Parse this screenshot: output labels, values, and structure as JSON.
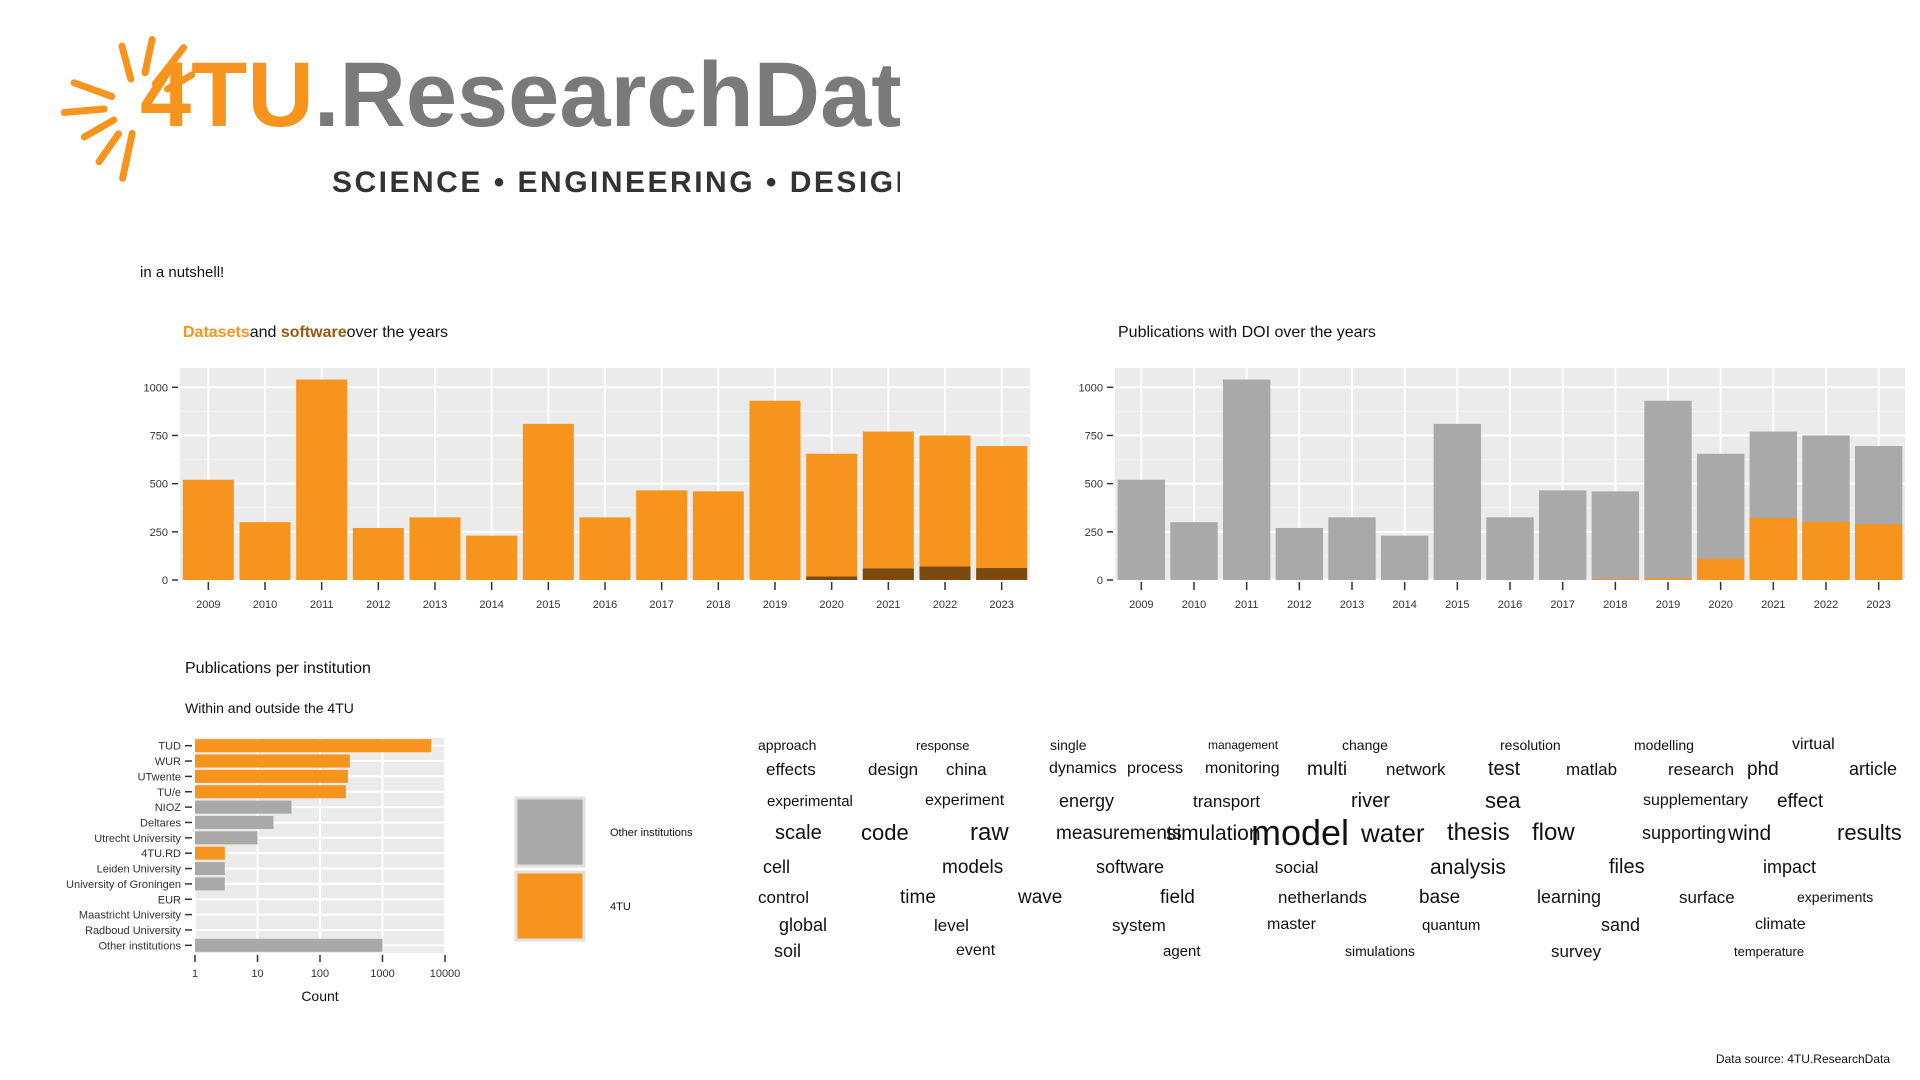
{
  "logo": {
    "brand_prefix": "4TU",
    "brand_dot": ".",
    "brand_name": "ResearchData",
    "tagline": "SCIENCE • ENGINEERING • DESIGN",
    "colors": {
      "orange": "#F7941D",
      "gray": "#7a7a7a",
      "dark": "#333333"
    }
  },
  "subtitle": "in a nutshell!",
  "source_note": "Data source: 4TU.ResearchData",
  "colors": {
    "orange": "#F7941D",
    "dark_orange": "#7a4a10",
    "gray_bar": "#a9a9a9",
    "panel": "#ebebeb",
    "grid": "#ffffff"
  },
  "chart_data": [
    {
      "id": "datasets",
      "type": "bar",
      "title_parts": [
        {
          "text": "Datasets",
          "style": "orange"
        },
        {
          "text": "and ",
          "style": "plain"
        },
        {
          "text": "software",
          "style": "brown"
        },
        {
          "text": "over the years",
          "style": "plain"
        }
      ],
      "categories": [
        "2009",
        "2010",
        "2011",
        "2012",
        "2013",
        "2014",
        "2015",
        "2016",
        "2017",
        "2018",
        "2019",
        "2020",
        "2021",
        "2022",
        "2023"
      ],
      "series": [
        {
          "values": [
            520,
            300,
            1040,
            270,
            325,
            230,
            810,
            325,
            465,
            460,
            930,
            655,
            770,
            750,
            695
          ],
          "color": "#F7941D"
        },
        {
          "values": [
            0,
            0,
            0,
            0,
            0,
            0,
            0,
            0,
            0,
            0,
            0,
            18,
            60,
            70,
            62
          ],
          "color": "#7a4a10"
        }
      ],
      "stacking": "overlay",
      "ylim": [
        0,
        1100
      ],
      "yticks": [
        0,
        250,
        500,
        750,
        1000
      ],
      "grid": true
    },
    {
      "id": "doi",
      "type": "bar",
      "title": "Publications with DOI over the years",
      "categories": [
        "2009",
        "2010",
        "2011",
        "2012",
        "2013",
        "2014",
        "2015",
        "2016",
        "2017",
        "2018",
        "2019",
        "2020",
        "2021",
        "2022",
        "2023"
      ],
      "series": [
        {
          "values": [
            520,
            300,
            1040,
            270,
            325,
            230,
            810,
            325,
            465,
            460,
            930,
            655,
            770,
            750,
            695
          ],
          "color": "#a9a9a9"
        },
        {
          "values": [
            0,
            0,
            0,
            0,
            0,
            0,
            0,
            0,
            0,
            5,
            8,
            110,
            322,
            302,
            290
          ],
          "color": "#F7941D"
        }
      ],
      "stacking": "overlay",
      "ylim": [
        0,
        1100
      ],
      "yticks": [
        0,
        250,
        500,
        750,
        1000
      ],
      "grid": true
    },
    {
      "id": "institutions",
      "type": "bar",
      "orientation": "horizontal",
      "title": "Publications per institution",
      "subtitle": "Within and outside the 4TU",
      "categories": [
        "TUD",
        "WUR",
        "UTwente",
        "TU/e",
        "NIOZ",
        "Deltares",
        "Utrecht University",
        "4TU.RD",
        "Leiden University",
        "University of Groningen",
        "EUR",
        "Maastricht University",
        "Radboud University",
        "Other institutions"
      ],
      "values": [
        6000,
        300,
        280,
        260,
        35,
        18,
        10,
        3,
        3,
        3,
        1,
        1,
        1,
        1000
      ],
      "groups": [
        "4TU",
        "4TU",
        "4TU",
        "4TU",
        "Other institutions",
        "Other institutions",
        "Other institutions",
        "4TU",
        "Other institutions",
        "Other institutions",
        "Other institutions",
        "Other institutions",
        "Other institutions",
        "Other institutions"
      ],
      "xscale": "log",
      "xlim": [
        1,
        10000
      ],
      "xticks": [
        1,
        10,
        100,
        1000,
        10000
      ],
      "xtick_labels": [
        "1",
        "10",
        "100",
        "1000",
        "10000"
      ],
      "xlabel": "Count",
      "legend": [
        {
          "name": "Other institutions",
          "color": "#a9a9a9"
        },
        {
          "name": "4TU",
          "color": "#F7941D"
        }
      ],
      "legend_position": "right",
      "grid": true
    }
  ],
  "wordcloud": [
    {
      "w": "approach",
      "s": 14
    },
    {
      "w": "response",
      "s": 13
    },
    {
      "w": "single",
      "s": 14
    },
    {
      "w": "management",
      "s": 12
    },
    {
      "w": "change",
      "s": 14
    },
    {
      "w": "resolution",
      "s": 14
    },
    {
      "w": "modelling",
      "s": 14
    },
    {
      "w": "virtual",
      "s": 16
    },
    {
      "w": "effects",
      "s": 17
    },
    {
      "w": "design",
      "s": 17
    },
    {
      "w": "china",
      "s": 17
    },
    {
      "w": "dynamics",
      "s": 16
    },
    {
      "w": "process",
      "s": 16
    },
    {
      "w": "monitoring",
      "s": 16
    },
    {
      "w": "multi",
      "s": 19
    },
    {
      "w": "network",
      "s": 17
    },
    {
      "w": "test",
      "s": 20
    },
    {
      "w": "matlab",
      "s": 17
    },
    {
      "w": "research",
      "s": 17
    },
    {
      "w": "phd",
      "s": 19
    },
    {
      "w": "article",
      "s": 18
    },
    {
      "w": "experimental",
      "s": 15
    },
    {
      "w": "experiment",
      "s": 16
    },
    {
      "w": "energy",
      "s": 18
    },
    {
      "w": "transport",
      "s": 17
    },
    {
      "w": "river",
      "s": 20
    },
    {
      "w": "sea",
      "s": 22
    },
    {
      "w": "supplementary",
      "s": 16
    },
    {
      "w": "effect",
      "s": 19
    },
    {
      "w": "scale",
      "s": 20
    },
    {
      "w": "code",
      "s": 22
    },
    {
      "w": "raw",
      "s": 24
    },
    {
      "w": "measurements",
      "s": 19
    },
    {
      "w": "simulation",
      "s": 21
    },
    {
      "w": "model",
      "s": 36
    },
    {
      "w": "water",
      "s": 26
    },
    {
      "w": "thesis",
      "s": 24
    },
    {
      "w": "flow",
      "s": 24
    },
    {
      "w": "supporting",
      "s": 18
    },
    {
      "w": "wind",
      "s": 21
    },
    {
      "w": "results",
      "s": 22
    },
    {
      "w": "cell",
      "s": 18
    },
    {
      "w": "models",
      "s": 19
    },
    {
      "w": "software",
      "s": 18
    },
    {
      "w": "social",
      "s": 17
    },
    {
      "w": "analysis",
      "s": 21
    },
    {
      "w": "files",
      "s": 20
    },
    {
      "w": "impact",
      "s": 18
    },
    {
      "w": "control",
      "s": 17
    },
    {
      "w": "time",
      "s": 19
    },
    {
      "w": "wave",
      "s": 19
    },
    {
      "w": "field",
      "s": 19
    },
    {
      "w": "netherlands",
      "s": 17
    },
    {
      "w": "base",
      "s": 19
    },
    {
      "w": "learning",
      "s": 18
    },
    {
      "w": "surface",
      "s": 17
    },
    {
      "w": "experiments",
      "s": 14
    },
    {
      "w": "global",
      "s": 18
    },
    {
      "w": "level",
      "s": 17
    },
    {
      "w": "system",
      "s": 17
    },
    {
      "w": "master",
      "s": 16
    },
    {
      "w": "quantum",
      "s": 15
    },
    {
      "w": "sand",
      "s": 18
    },
    {
      "w": "climate",
      "s": 16
    },
    {
      "w": "soil",
      "s": 18
    },
    {
      "w": "event",
      "s": 16
    },
    {
      "w": "agent",
      "s": 15
    },
    {
      "w": "simulations",
      "s": 14
    },
    {
      "w": "survey",
      "s": 17
    },
    {
      "w": "temperature",
      "s": 13
    }
  ]
}
